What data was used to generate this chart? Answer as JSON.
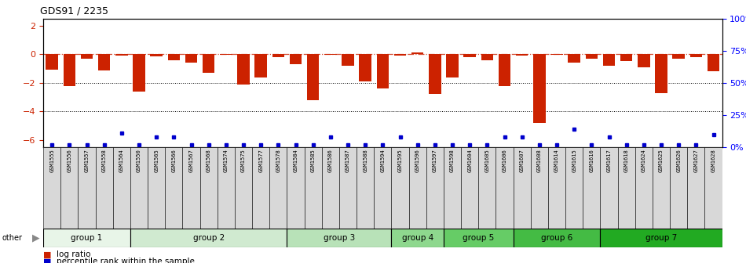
{
  "title": "GDS91 / 2235",
  "samples": [
    "GSM1555",
    "GSM1556",
    "GSM1557",
    "GSM1558",
    "GSM1564",
    "GSM1550",
    "GSM1565",
    "GSM1566",
    "GSM1567",
    "GSM1568",
    "GSM1574",
    "GSM1575",
    "GSM1577",
    "GSM1578",
    "GSM1584",
    "GSM1585",
    "GSM1586",
    "GSM1587",
    "GSM1588",
    "GSM1594",
    "GSM1595",
    "GSM1596",
    "GSM1597",
    "GSM1598",
    "GSM1604",
    "GSM1605",
    "GSM1606",
    "GSM1607",
    "GSM1608",
    "GSM1614",
    "GSM1615",
    "GSM1616",
    "GSM1617",
    "GSM1618",
    "GSM1624",
    "GSM1625",
    "GSM1626",
    "GSM1627",
    "GSM1628"
  ],
  "log_ratios": [
    -1.1,
    -2.25,
    -0.3,
    -1.15,
    -0.1,
    -2.6,
    -0.15,
    -0.4,
    -0.6,
    -1.3,
    -0.05,
    -2.1,
    -1.6,
    -0.2,
    -0.7,
    -3.2,
    -0.05,
    -0.8,
    -1.9,
    -2.4,
    -0.1,
    0.1,
    -2.8,
    -1.6,
    -0.2,
    -0.4,
    -2.25,
    -0.1,
    -4.8,
    -0.05,
    -0.6,
    -0.3,
    -0.8,
    -0.5,
    -0.9,
    -2.7,
    -0.3,
    -0.2,
    -1.2
  ],
  "percentile_ranks": [
    2,
    2,
    2,
    2,
    11,
    2,
    8,
    8,
    2,
    2,
    2,
    2,
    2,
    2,
    2,
    2,
    8,
    2,
    2,
    2,
    8,
    2,
    2,
    2,
    2,
    2,
    8,
    8,
    2,
    2,
    14,
    2,
    8,
    2,
    2,
    2,
    2,
    2,
    10
  ],
  "group_names": [
    "group 1",
    "group 2",
    "group 3",
    "group 4",
    "group 5",
    "group 6",
    "group 7"
  ],
  "group_start_idx": [
    0,
    5,
    14,
    20,
    23,
    27,
    32
  ],
  "group_end_idx": [
    4,
    13,
    19,
    22,
    26,
    31,
    38
  ],
  "group_colors": [
    "#e8f5e8",
    "#d0ead0",
    "#b8e2b8",
    "#8ed88e",
    "#66cc66",
    "#44bb44",
    "#22aa22"
  ],
  "bar_color": "#cc2200",
  "dot_color": "#0000cc",
  "ylim_left": [
    -6.5,
    2.5
  ],
  "ylim_right": [
    0,
    100
  ],
  "yticks_left": [
    -6,
    -4,
    -2,
    0,
    2
  ],
  "yticks_right": [
    0,
    25,
    50,
    75,
    100
  ],
  "hlines": [
    0,
    -2,
    -4
  ],
  "background_color": "#ffffff",
  "xtick_bg": "#d8d8d8"
}
